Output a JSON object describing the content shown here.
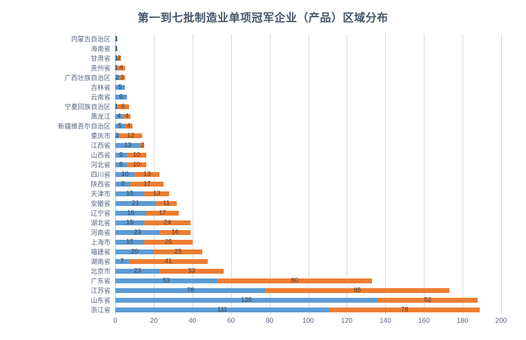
{
  "chart_data": {
    "type": "bar",
    "orientation": "horizontal",
    "stacked": true,
    "title": "第一到七批制造业单项冠军企业（产品）区域分布",
    "xlabel": "",
    "ylabel": "",
    "xlim": [
      0,
      200
    ],
    "xticks": [
      0,
      20,
      40,
      60,
      80,
      100,
      120,
      140,
      160,
      180,
      200
    ],
    "grid": true,
    "legend": false,
    "data_labels": true,
    "categories_top_to_bottom": [
      "内蒙古自治区",
      "海南省",
      "甘肃省",
      "贵州省",
      "广西壮族自治区",
      "吉林省",
      "云南省",
      "宁夏回族自治区",
      "黑龙江",
      "新疆维吾尔自治区",
      "重庆市",
      "江西省",
      "山西省",
      "河北省",
      "四川省",
      "陕西省",
      "天津市",
      "安徽省",
      "辽宁省",
      "湖北省",
      "河南省",
      "上海市",
      "福建省",
      "湖南省",
      "北京市",
      "广东省",
      "江苏省",
      "山东省",
      "浙江省"
    ],
    "series": [
      {
        "name": "series-1-blue",
        "color": "#5B9BD5",
        "values": [
          1,
          1,
          1,
          1,
          2,
          5,
          6,
          1,
          4,
          5,
          2,
          13,
          6,
          6,
          10,
          8,
          15,
          21,
          16,
          15,
          23,
          15,
          20,
          7,
          23,
          53,
          78,
          136,
          111
        ]
      },
      {
        "name": "series-2-orange",
        "color": "#ED7D31",
        "values": [
          0,
          0,
          2,
          4,
          3,
          0,
          0,
          6,
          4,
          4,
          12,
          2,
          10,
          10,
          13,
          17,
          13,
          11,
          17,
          24,
          16,
          25,
          25,
          41,
          33,
          80,
          95,
          52,
          78
        ]
      }
    ]
  },
  "colors": {
    "title": "#44546A",
    "category_label": "#546580",
    "tick_label": "#596780",
    "data_label": "#404040",
    "gridline": "#D9D9D9",
    "background": "#FFFFFF"
  }
}
